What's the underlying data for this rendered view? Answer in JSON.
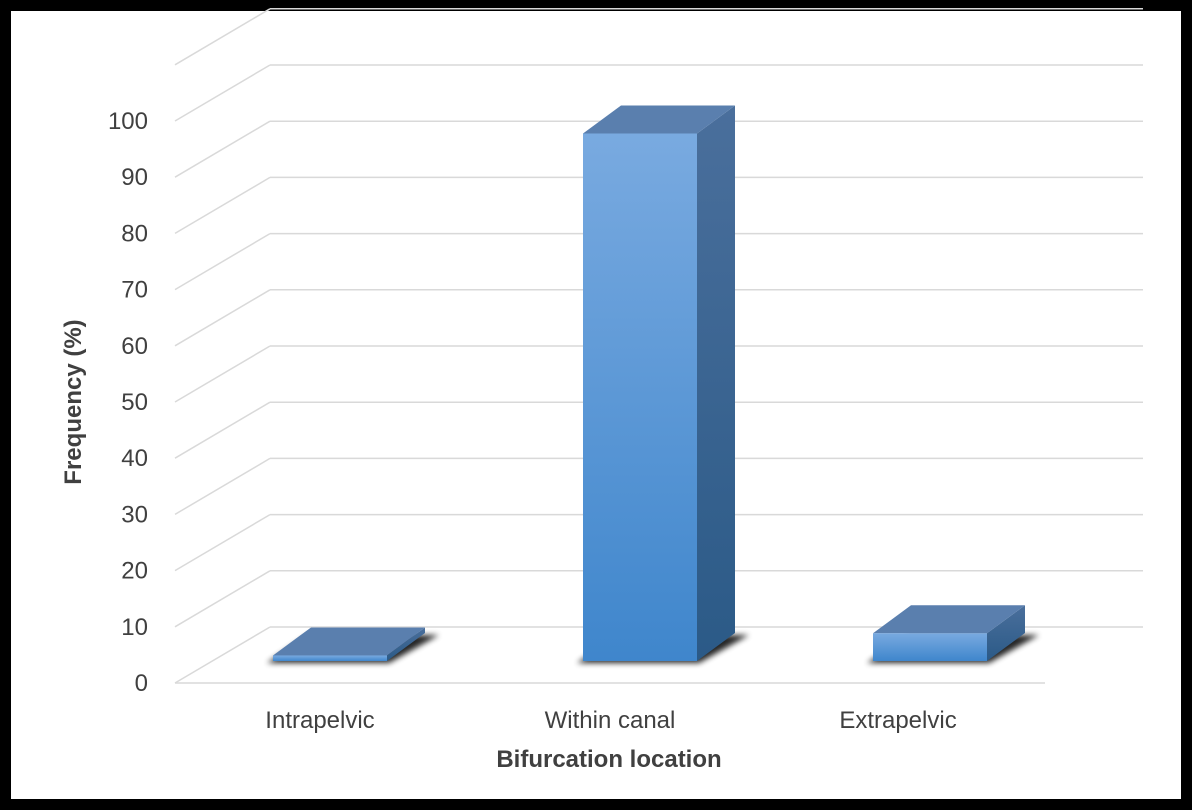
{
  "chart_data": {
    "type": "bar",
    "categories": [
      "Intrapelvic",
      "Within canal",
      "Extrapelvic"
    ],
    "values": [
      1,
      95,
      5
    ],
    "xlabel": "Bifurcation location",
    "ylabel": "Frequency (%)",
    "ylim": [
      0,
      110
    ],
    "yticks": [
      0,
      10,
      20,
      30,
      40,
      50,
      60,
      70,
      80,
      90,
      100
    ],
    "grid": true,
    "style": "3d-bar",
    "colors": {
      "bar_front": "#5B9BD5",
      "bar_top": "#5A7FAE",
      "bar_side": "#3D6694",
      "gridline": "#D9D9D9",
      "text": "#404040",
      "border": "#000000",
      "plot_bg": "#FFFFFF"
    }
  }
}
